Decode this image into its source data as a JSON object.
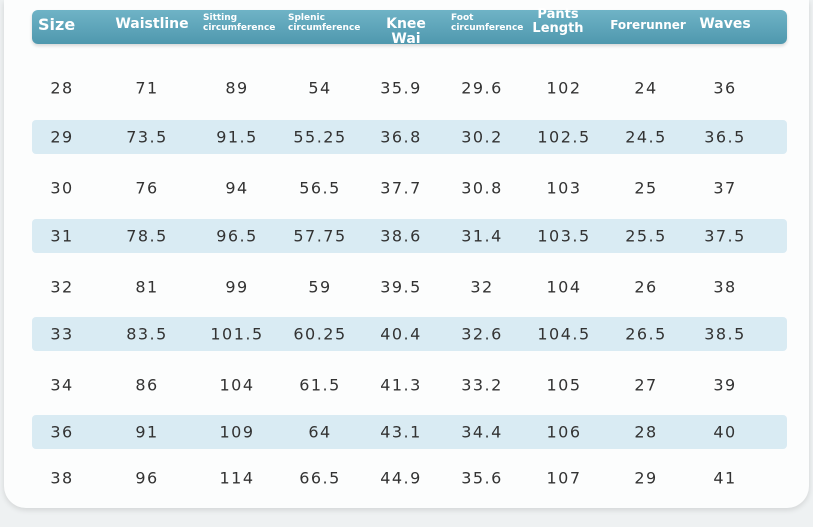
{
  "table": {
    "header": [
      "Size",
      "Waistline",
      "Sitting circumference",
      "Splenic circumference",
      "Knee Wai",
      "Foot circumference",
      "Pants Length",
      "Forerunner",
      "Waves"
    ],
    "rows": [
      [
        "28",
        "71",
        "89",
        "54",
        "35.9",
        "29.6",
        "102",
        "24",
        "36"
      ],
      [
        "29",
        "73.5",
        "91.5",
        "55.25",
        "36.8",
        "30.2",
        "102.5",
        "24.5",
        "36.5"
      ],
      [
        "30",
        "76",
        "94",
        "56.5",
        "37.7",
        "30.8",
        "103",
        "25",
        "37"
      ],
      [
        "31",
        "78.5",
        "96.5",
        "57.75",
        "38.6",
        "31.4",
        "103.5",
        "25.5",
        "37.5"
      ],
      [
        "32",
        "81",
        "99",
        "59",
        "39.5",
        "32",
        "104",
        "26",
        "38"
      ],
      [
        "33",
        "83.5",
        "101.5",
        "60.25",
        "40.4",
        "32.6",
        "104.5",
        "26.5",
        "38.5"
      ],
      [
        "34",
        "86",
        "104",
        "61.5",
        "41.3",
        "33.2",
        "105",
        "27",
        "39"
      ],
      [
        "36",
        "91",
        "109",
        "64",
        "43.1",
        "34.4",
        "106",
        "28",
        "40"
      ],
      [
        "38",
        "96",
        "114",
        "66.5",
        "44.9",
        "35.6",
        "107",
        "29",
        "41"
      ]
    ]
  }
}
